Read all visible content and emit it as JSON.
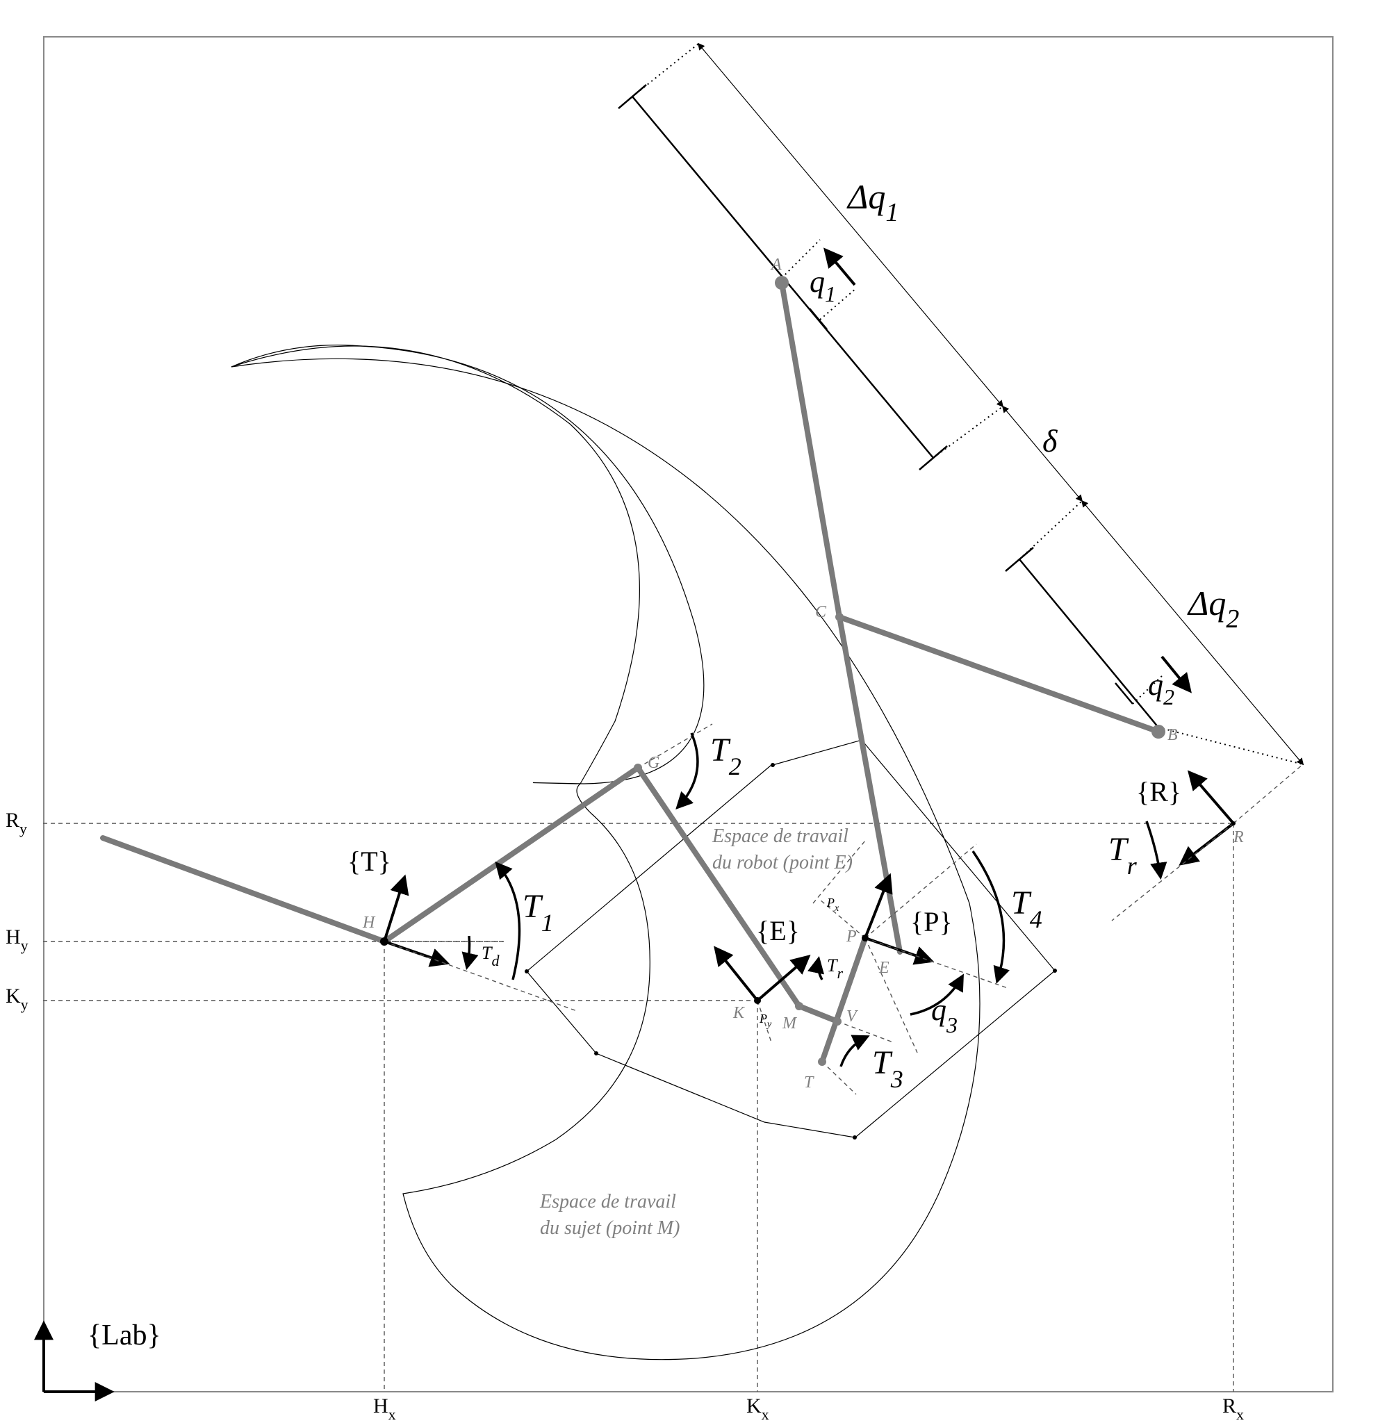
{
  "frames": {
    "lab": "{Lab}",
    "T": "{T}",
    "E": "{E}",
    "P": "{P}",
    "R": "{R}"
  },
  "axis_ticks": {
    "Ry": "R",
    "Ry_sub": "y",
    "Hy": "H",
    "Hy_sub": "y",
    "Ky": "K",
    "Ky_sub": "y",
    "Hx": "H",
    "Hx_sub": "x",
    "Kx": "K",
    "Kx_sub": "x",
    "Rx": "R",
    "Rx_sub": "x"
  },
  "points": {
    "A": "A",
    "B": "B",
    "C": "C",
    "G": "G",
    "H": "H",
    "K": "K",
    "M": "M",
    "V": "V",
    "T": "T",
    "P": "P",
    "E": "E",
    "R": "R"
  },
  "angles": {
    "T1": "T",
    "T1_sub": "1",
    "T2": "T",
    "T2_sub": "2",
    "T3": "T",
    "T3_sub": "3",
    "T4": "T",
    "T4_sub": "4",
    "Td": "T",
    "Td_sub": "d",
    "Tr_small": "T",
    "Tr_small_sub": "r",
    "Tr": "T",
    "Tr_sub": "r",
    "q3": "q",
    "q3_sub": "3"
  },
  "dimensions": {
    "dq1": "Δq",
    "dq1_sub": "1",
    "q1": "q",
    "q1_sub": "1",
    "delta": "δ",
    "dq2": "Δq",
    "dq2_sub": "2",
    "q2": "q",
    "q2_sub": "2"
  },
  "pvec": {
    "Px": "P",
    "Px_sub": "x",
    "Py": "P",
    "Py_sub": "y"
  },
  "workspaces": {
    "robot_line1": "Espace de travail",
    "robot_line2": "du robot (point E)",
    "subject_line1": "Espace de travail",
    "subject_line2": "du sujet (point M)"
  },
  "colors": {
    "link": "#7a7a7a",
    "point_label": "#808080",
    "ink": "#000000"
  }
}
